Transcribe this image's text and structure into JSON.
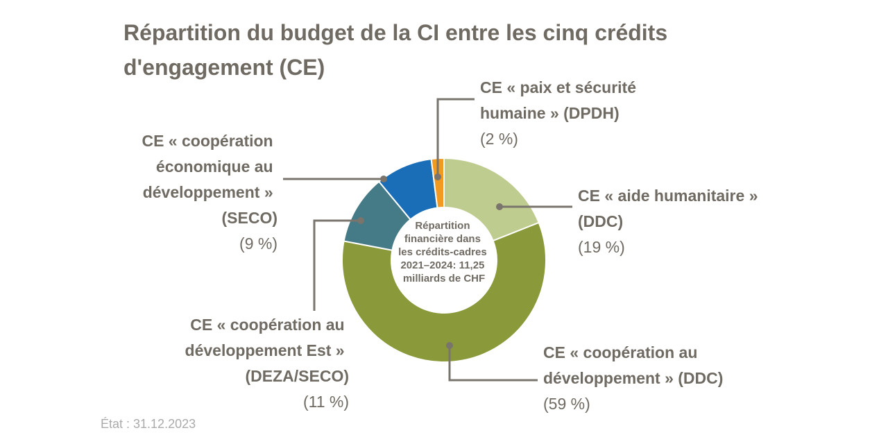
{
  "chart_data": {
    "type": "donut",
    "title": "Répartition du budget de la CI entre les cinq crédits d'engagement (CE)",
    "center_text": "Répartition financière dans les crédits-cadres 2021–2024: 11,25 milliards de CHF",
    "categories": [
      "CE « aide humanitaire » (DDC)",
      "CE « coopération au développement » (DDC)",
      "CE « coopération au développement Est » (DEZA/SECO)",
      "CE « coopération économique au développement » (SECO)",
      "CE « paix et sécurité humaine » (DPDH)"
    ],
    "values": [
      19,
      59,
      11,
      9,
      2
    ],
    "value_labels": [
      "(19 %)",
      "(59 %)",
      "(11 %)",
      "(9 %)",
      "(2 %)"
    ],
    "colors": [
      "#bfcc8f",
      "#8a9a3a",
      "#457a87",
      "#1a6eb8",
      "#f29a1f"
    ],
    "note": "État : 31.12.2023"
  }
}
